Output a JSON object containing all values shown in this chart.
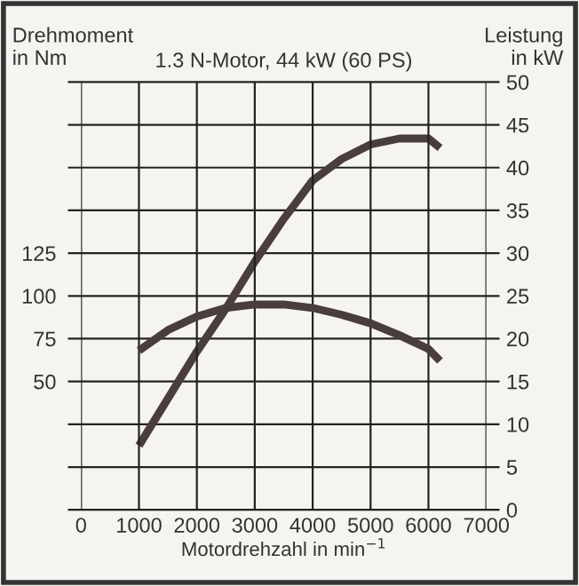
{
  "chart_data": {
    "type": "line",
    "title": "1.3 N-Motor, 44 kW (60 PS)",
    "xlabel": "Motordrehzahl in min$^{−1}$",
    "ylabel": "Drehmoment\nin Nm",
    "y2label": "Leistung\nin kW",
    "xlim": [
      0,
      7000
    ],
    "xticks": [
      0,
      1000,
      2000,
      3000,
      4000,
      5000,
      6000,
      7000
    ],
    "ylim": [
      -25,
      225
    ],
    "yticks": [
      50,
      75,
      100,
      125
    ],
    "y2lim": [
      0,
      50
    ],
    "y2ticks": [
      0,
      5,
      10,
      15,
      20,
      25,
      30,
      35,
      40,
      45,
      50
    ],
    "grid": true,
    "legend": false,
    "line_style": "solid",
    "marker": "none",
    "series": [
      {
        "color": "#4a3d3d",
        "x": [
          1000,
          1500,
          2000,
          2500,
          3000,
          3500,
          4000,
          4500,
          5000,
          5500,
          6000,
          6200
        ],
        "values": [
          68,
          80,
          88,
          93,
          95,
          95,
          93,
          89,
          84,
          77,
          69,
          62
        ]
      },
      {
        "color": "#4a3d3d",
        "axis": "y2",
        "x": [
          1000,
          1500,
          2000,
          2500,
          3000,
          3500,
          4000,
          4500,
          5000,
          5500,
          6000,
          6200
        ],
        "values": [
          7.5,
          13,
          18.5,
          23.5,
          29,
          34,
          38.5,
          41,
          42.7,
          43.4,
          43.4,
          42.3
        ]
      }
    ]
  }
}
